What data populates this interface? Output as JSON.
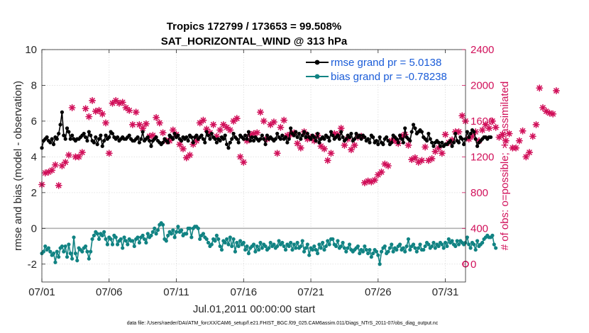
{
  "chart_data": {
    "type": "line",
    "title": "Tropics 172799 / 173653 = 99.508%",
    "subtitle": "SAT_HORIZONTAL_WIND @ 313 hPa",
    "xlabel": "Jul.01,2011 00:00:00 start",
    "ylabel": "rmse and bias (model - observation)",
    "ylabel_right": "# of obs: o=possible; ∗=assimilated",
    "footnote": "data file: /Users/raeder/DAI/ATM_forcXX/CAM6_setup/f.e21.FHIST_BGC.f09_025.CAM6assim.011/Diags_NTrS_2011-07/obs_diag_output.nc",
    "xlim": [
      0,
      31.5
    ],
    "ylim": [
      -3,
      10
    ],
    "ylim_right": [
      -200,
      2400
    ],
    "x_ticks": [
      0,
      5,
      10,
      15,
      20,
      25,
      30
    ],
    "x_tick_labels": [
      "07/01",
      "07/06",
      "07/11",
      "07/16",
      "07/21",
      "07/26",
      "07/31"
    ],
    "y_ticks": [
      -2,
      0,
      2,
      4,
      6,
      8,
      10
    ],
    "y_tick_labels": [
      "-2",
      "0",
      "2",
      "4",
      "6",
      "8",
      "10"
    ],
    "y_right_ticks": [
      0,
      400,
      800,
      1200,
      1600,
      2000,
      2400
    ],
    "y_right_tick_labels": [
      "0",
      "400",
      "800",
      "1200",
      "1600",
      "2000",
      "2400"
    ],
    "zero_line": 0,
    "series": [
      {
        "name": "rmse grand pr = 5.0138",
        "axis": "left",
        "color": "#000000",
        "x_step": 0.125,
        "values": [
          4.5,
          4.9,
          5.0,
          5.1,
          4.9,
          4.8,
          5.0,
          4.7,
          5.1,
          5.0,
          5.3,
          5.8,
          6.5,
          5.2,
          5.0,
          5.6,
          5.4,
          5.0,
          5.2,
          5.0,
          4.9,
          5.0,
          5.0,
          5.1,
          5.2,
          5.3,
          5.1,
          4.9,
          5.4,
          5.2,
          4.9,
          4.8,
          5.1,
          4.7,
          5.0,
          5.2,
          4.6,
          4.9,
          5.2,
          5.0,
          5.1,
          5.4,
          5.3,
          5.1,
          5.0,
          5.1,
          4.9,
          5.0,
          5.1,
          5.0,
          5.0,
          5.1,
          5.2,
          5.0,
          4.9,
          4.9,
          5.0,
          5.1,
          4.8,
          5.0,
          5.4,
          4.9,
          5.0,
          5.1,
          4.9,
          4.6,
          4.9,
          5.0,
          5.1,
          4.9,
          4.8,
          4.7,
          4.8,
          5.0,
          4.9,
          4.8,
          5.2,
          5.1,
          5.0,
          5.3,
          5.1,
          5.2,
          5.0,
          4.9,
          5.1,
          5.0,
          5.1,
          4.9,
          5.2,
          5.1,
          4.8,
          5.1,
          5.2,
          5.0,
          5.1,
          5.2,
          5.0,
          4.8,
          5.4,
          5.2,
          5.0,
          5.3,
          5.1,
          5.0,
          4.8,
          5.0,
          4.9,
          5.1,
          5.0,
          5.2,
          4.7,
          4.5,
          4.8,
          5.0,
          5.3,
          5.1,
          5.0,
          4.8,
          5.2,
          5.1,
          5.0,
          5.2,
          5.0,
          5.4,
          4.9,
          5.1,
          4.9,
          5.1,
          5.0,
          4.9,
          5.0,
          5.2,
          5.0,
          4.7,
          5.2,
          5.0,
          5.1,
          5.0,
          4.9,
          5.0,
          5.3,
          5.1,
          5.0,
          5.2,
          5.0,
          5.1,
          4.8,
          5.0,
          5.6,
          5.3,
          5.2,
          5.4,
          5.1,
          5.3,
          5.0,
          5.2,
          5.4,
          5.1,
          5.3,
          5.1,
          5.0,
          5.2,
          5.1,
          4.9,
          5.3,
          4.8,
          5.0,
          5.1,
          5.0,
          5.2,
          5.1,
          4.9,
          5.4,
          5.2,
          5.0,
          5.1,
          5.2,
          5.0,
          5.4,
          5.1,
          4.9,
          5.0,
          5.2,
          5.1,
          5.3,
          4.9,
          5.0,
          5.3,
          5.1,
          5.2,
          5.0,
          5.2,
          5.1,
          4.9,
          5.0,
          4.8,
          5.2,
          5.1,
          4.8,
          4.9,
          4.7,
          5.1,
          4.8,
          4.7,
          5.0,
          5.1,
          4.9,
          4.7,
          4.8,
          5.2,
          5.1,
          5.0,
          4.8,
          5.2,
          5.0,
          4.8,
          5.6,
          5.1,
          5.0,
          4.9,
          5.4,
          5.8,
          5.6,
          5.3,
          5.4,
          5.5,
          5.4,
          5.1,
          5.0,
          4.9,
          5.3,
          5.0,
          4.8,
          4.6,
          4.8,
          4.9,
          4.8,
          4.6,
          4.8,
          4.6,
          4.7,
          4.7,
          4.8,
          4.9,
          4.6,
          4.8,
          5.3,
          4.9,
          4.8,
          5.1,
          5.0,
          4.7,
          5.0,
          5.4,
          5.1,
          5.3,
          5.5,
          5.4,
          5.0,
          4.6,
          4.8,
          4.9,
          5.0,
          5.1,
          5.1,
          5.0,
          5.1,
          5.1
        ]
      },
      {
        "name": "bias grand pr = -0.78238",
        "axis": "left",
        "color": "#118383",
        "x_step": 0.125,
        "values": [
          -1.4,
          -1.3,
          -1.0,
          -1.2,
          -1.1,
          -1.3,
          -1.5,
          -1.4,
          -1.9,
          -1.3,
          -1.6,
          -1.1,
          -1.0,
          -1.3,
          -1.0,
          -1.6,
          -0.9,
          -1.4,
          -1.7,
          -0.5,
          -1.4,
          -1.8,
          -1.1,
          -1.2,
          -1.3,
          -1.1,
          -1.0,
          -1.3,
          -1.7,
          -1.3,
          -0.6,
          -0.4,
          -0.2,
          -0.3,
          -0.6,
          -0.3,
          -0.4,
          -0.2,
          -0.6,
          -0.9,
          -0.5,
          -0.6,
          -0.9,
          -0.4,
          -0.5,
          -0.9,
          -0.7,
          -0.6,
          -1.1,
          -0.5,
          -0.7,
          -0.9,
          -0.6,
          -0.7,
          -0.7,
          -1.0,
          -0.6,
          -0.5,
          -0.8,
          -0.5,
          -0.4,
          -0.6,
          -0.8,
          -0.3,
          -0.5,
          -0.4,
          -0.2,
          0.0,
          -0.3,
          -0.1,
          0.2,
          0.3,
          0.2,
          -0.6,
          -0.7,
          -0.4,
          -0.2,
          -0.3,
          -0.1,
          -0.5,
          -0.2,
          0.1,
          -0.2,
          -0.1,
          -0.4,
          -0.3,
          -0.3,
          0.0,
          0.0,
          -0.5,
          0.0,
          0.1,
          0.1,
          0.0,
          -0.6,
          -0.4,
          -0.3,
          -0.5,
          -0.6,
          -0.8,
          -1.0,
          -0.9,
          -0.6,
          -0.7,
          -0.4,
          -0.6,
          -1.0,
          -1.2,
          -0.7,
          -0.8,
          -0.6,
          -0.9,
          -0.5,
          -1.0,
          -0.6,
          -1.3,
          -0.8,
          -1.0,
          -0.7,
          -0.9,
          -0.8,
          -1.2,
          -1.0,
          -1.4,
          -1.1,
          -1.0,
          -0.9,
          -1.3,
          -1.0,
          -1.2,
          -0.8,
          -1.1,
          -0.9,
          -1.0,
          -1.2,
          -1.1,
          -0.8,
          -1.0,
          -0.9,
          -1.1,
          -1.0,
          -0.7,
          -0.9,
          -0.8,
          -1.0,
          -1.2,
          -0.9,
          -1.0,
          -0.8,
          -1.2,
          -0.9,
          -1.1,
          -0.8,
          -1.1,
          -1.0,
          -0.7,
          -1.3,
          -1.1,
          -0.9,
          -1.5,
          -1.1,
          -1.2,
          -1.0,
          -1.2,
          -1.4,
          -0.9,
          -1.1,
          -0.8,
          -1.2,
          -1.0,
          -0.7,
          -0.9,
          -0.6,
          -0.6,
          -0.9,
          -1.0,
          -0.7,
          -1.1,
          -1.0,
          -0.8,
          -1.1,
          -1.3,
          -1.1,
          -0.9,
          -1.2,
          -1.3,
          -1.2,
          -1.1,
          -1.0,
          -1.4,
          -1.2,
          -1.3,
          -1.0,
          -1.2,
          -1.4,
          -1.2,
          -1.6,
          -1.4,
          -1.2,
          -1.3,
          -1.5,
          -2.0,
          -1.3,
          -1.1,
          -1.0,
          -1.4,
          -1.3,
          -1.1,
          -0.9,
          -1.3,
          -1.1,
          -1.2,
          -1.0,
          -0.9,
          -1.2,
          -1.1,
          -1.3,
          -1.0,
          -0.6,
          -1.2,
          -1.0,
          -0.9,
          -1.1,
          -1.3,
          -1.1,
          -0.9,
          -1.2,
          -1.2,
          -1.0,
          -0.8,
          -0.9,
          -1.1,
          -1.0,
          -0.8,
          -1.1,
          -0.9,
          -1.0,
          -0.8,
          -0.9,
          -1.1,
          -0.8,
          -1.0,
          -0.6,
          -0.8,
          -0.7,
          -0.9,
          -1.0,
          -0.7,
          -0.9,
          -0.7,
          -0.8,
          -0.9,
          -0.8,
          -0.5,
          -0.9,
          -1.1,
          -0.8,
          -0.9,
          -1.2,
          -0.7,
          -1.0,
          -0.9,
          -0.8,
          -0.6,
          -0.5,
          -0.4,
          -0.5,
          -0.5,
          -0.4,
          -0.9,
          -1.1
        ]
      },
      {
        "name": "observations assimilated",
        "axis": "right",
        "color": "#d1105a",
        "x_step": 0.25,
        "values": [
          890,
          1020,
          1030,
          1050,
          1110,
          880,
          1100,
          1140,
          1220,
          1750,
          1200,
          1200,
          1250,
          1740,
          1650,
          1830,
          1710,
          1720,
          1680,
          1580,
          1240,
          1800,
          1830,
          1800,
          1810,
          1750,
          1720,
          1560,
          1700,
          1560,
          1520,
          1570,
          1430,
          1440,
          1640,
          1580,
          1470,
          1380,
          1380,
          1500,
          1450,
          1340,
          1290,
          1190,
          1220,
          1340,
          1380,
          1580,
          1610,
          1510,
          1470,
          1560,
          1430,
          1500,
          1560,
          1530,
          1500,
          1600,
          1630,
          1200,
          1140,
          1380,
          1450,
          1460,
          1470,
          1700,
          1600,
          1400,
          1560,
          1590,
          1240,
          1530,
          1610,
          1440,
          1450,
          1470,
          1350,
          1300,
          1480,
          1400,
          1420,
          1380,
          1440,
          1320,
          1290,
          1160,
          1240,
          1460,
          1450,
          1520,
          1330,
          1400,
          1280,
          1330,
          1420,
          1430,
          910,
          930,
          920,
          940,
          1000,
          1030,
          1120,
          1100,
          1380,
          1380,
          1350,
          1430,
          1450,
          1330,
          1170,
          1190,
          1140,
          1160,
          1310,
          1160,
          1180,
          1260,
          1300,
          1240,
          1450,
          1360,
          1390,
          1480,
          1480,
          1660,
          1600,
          1400,
          1430,
          1480,
          1380,
          1500,
          1560,
          1520,
          1600,
          1530,
          1420,
          1450,
          1380,
          1460,
          1300,
          1300,
          1380,
          1490,
          1200,
          1250,
          1430,
          1560,
          1970,
          1750,
          1710,
          1690,
          1680,
          1940
        ]
      },
      {
        "name": "observations possible",
        "axis": "right",
        "color": "#d1105a",
        "x": [
          31.5
        ],
        "values": [
          0
        ]
      }
    ],
    "legend": [
      "rmse grand pr = 5.0138",
      "bias grand pr = -0.78238"
    ],
    "legend_position": "top-right"
  }
}
